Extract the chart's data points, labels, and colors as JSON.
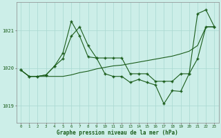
{
  "title": "Graphe pression niveau de la mer (hPa)",
  "background_color": "#cceee8",
  "line_color": "#1a5c1a",
  "grid_color": "#a8d8d0",
  "xlabel_color": "#1a5c1a",
  "xlim": [
    -0.5,
    23.5
  ],
  "ylim": [
    1018.55,
    1021.75
  ],
  "yticks": [
    1019,
    1020,
    1021
  ],
  "xticks": [
    0,
    1,
    2,
    3,
    4,
    5,
    6,
    7,
    8,
    9,
    10,
    11,
    12,
    13,
    14,
    15,
    16,
    17,
    18,
    19,
    20,
    21,
    22,
    23
  ],
  "series1_x": [
    0,
    1,
    2,
    3,
    4,
    5,
    6,
    7,
    8,
    9,
    10,
    11,
    12,
    13,
    14,
    15,
    16,
    17,
    18,
    19,
    20,
    21,
    22,
    23
  ],
  "series1_y": [
    1019.95,
    1019.78,
    1019.78,
    1019.82,
    1020.05,
    1020.4,
    1021.25,
    1020.85,
    1020.3,
    1020.27,
    1019.85,
    1019.78,
    1019.78,
    1019.62,
    1019.7,
    1019.62,
    1019.55,
    1019.05,
    1019.4,
    1019.38,
    1019.85,
    1021.45,
    1021.55,
    1021.1
  ],
  "series2_x": [
    0,
    1,
    2,
    3,
    4,
    5,
    6,
    7,
    8,
    9,
    10,
    11,
    12,
    13,
    14,
    15,
    16,
    17,
    18,
    19,
    20,
    21,
    22,
    23
  ],
  "series2_y": [
    1019.95,
    1019.78,
    1019.78,
    1019.82,
    1020.05,
    1020.25,
    1020.85,
    1021.1,
    1020.6,
    1020.27,
    1020.27,
    1020.27,
    1020.27,
    1019.85,
    1019.85,
    1019.85,
    1019.65,
    1019.65,
    1019.65,
    1019.85,
    1019.85,
    1020.25,
    1021.1,
    1021.1
  ],
  "series3_x": [
    0,
    1,
    2,
    3,
    4,
    5,
    6,
    7,
    8,
    9,
    10,
    11,
    12,
    13,
    14,
    15,
    16,
    17,
    18,
    19,
    20,
    21,
    22,
    23
  ],
  "series3_y": [
    1019.95,
    1019.78,
    1019.78,
    1019.78,
    1019.78,
    1019.78,
    1019.82,
    1019.88,
    1019.92,
    1019.98,
    1020.02,
    1020.06,
    1020.08,
    1020.12,
    1020.16,
    1020.2,
    1020.24,
    1020.28,
    1020.32,
    1020.38,
    1020.45,
    1020.6,
    1021.1,
    1021.1
  ],
  "marker_style": "+"
}
